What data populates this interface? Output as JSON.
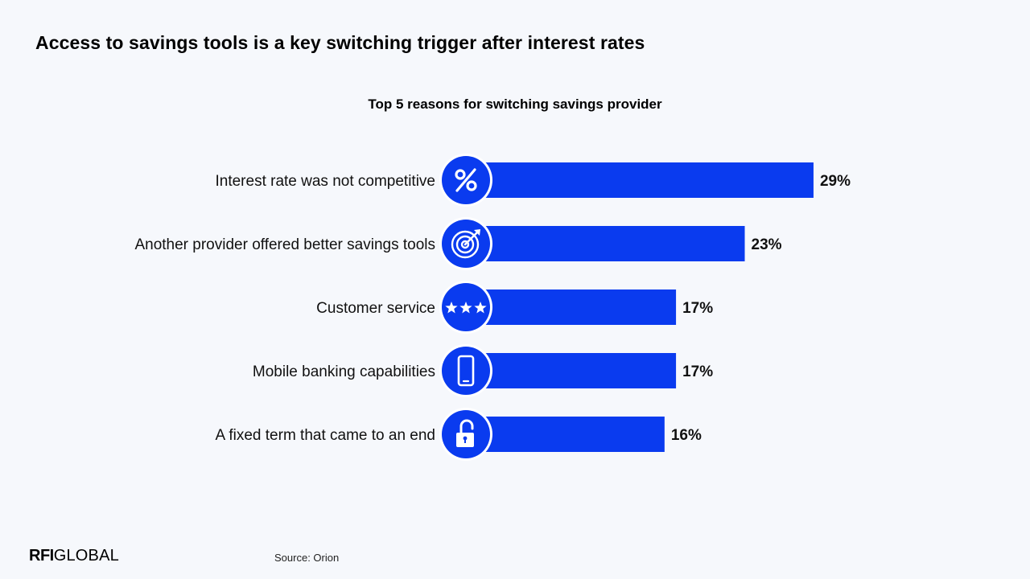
{
  "headline": "Access to savings tools is a key switching trigger after interest rates",
  "source": "Source: Orion",
  "logo": {
    "part1": "RFI",
    "part2": "GLOBAL"
  },
  "colors": {
    "bar": "#0a3bef",
    "background": "#f6f8fc",
    "icon_ring": "#ffffff"
  },
  "chart_data": {
    "type": "bar",
    "orientation": "horizontal",
    "title": "Top 5 reasons for switching savings provider",
    "categories": [
      "Interest rate was not competitive",
      "Another provider offered better savings tools",
      "Customer service",
      "Mobile banking capabilities",
      "A fixed term that came to an end"
    ],
    "values": [
      29,
      23,
      17,
      17,
      16
    ],
    "value_labels": [
      "29%",
      "23%",
      "17%",
      "17%",
      "16%"
    ],
    "icons": [
      "percent-icon",
      "target-icon",
      "stars-icon",
      "smartphone-icon",
      "unlock-icon"
    ],
    "unit": "%",
    "grid": false,
    "legend": "none"
  }
}
